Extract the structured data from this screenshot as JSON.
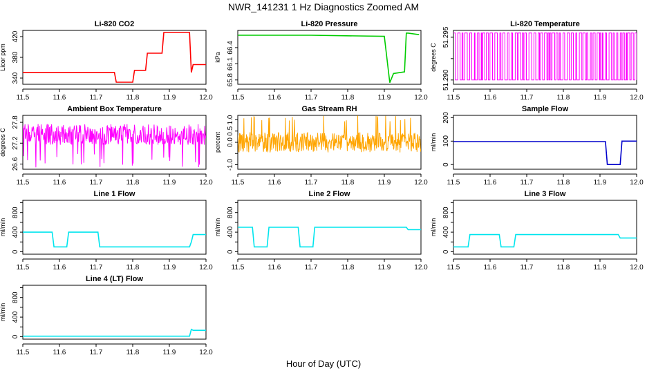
{
  "figure": {
    "title": "NWR_141231  1 Hz Diagnostics Zoomed AM",
    "xlabel": "Hour of Day (UTC)"
  },
  "chart_data": [
    {
      "type": "line",
      "title": "Li-820 CO2",
      "ylabel": "Licor ppm",
      "color": "#ff0000",
      "xlim": [
        11.5,
        12.0
      ],
      "ylim": [
        328,
        432
      ],
      "xticks": [
        "11.5",
        "11.6",
        "11.7",
        "11.8",
        "11.9",
        "12.0"
      ],
      "yticks": [
        340,
        380,
        420
      ],
      "x": [
        11.5,
        11.75,
        11.755,
        11.8,
        11.805,
        11.835,
        11.84,
        11.88,
        11.885,
        11.955,
        11.96,
        11.965,
        12.0
      ],
      "y": [
        351,
        351,
        332,
        332,
        355,
        355,
        388,
        388,
        428,
        428,
        351,
        366,
        366
      ]
    },
    {
      "type": "line",
      "title": "Li-820 Pressure",
      "ylabel": "kPa",
      "color": "#00cc00",
      "xlim": [
        11.5,
        12.0
      ],
      "ylim": [
        65.72,
        66.72
      ],
      "xticks": [
        "11.5",
        "11.6",
        "11.7",
        "11.8",
        "11.9",
        "12.0"
      ],
      "yticks": [
        65.8,
        66.1,
        66.4
      ],
      "ytick_labels": [
        "65.8",
        "66.1",
        "66.4"
      ],
      "x": [
        11.5,
        11.7,
        11.9,
        11.915,
        11.925,
        11.955,
        11.96,
        11.965,
        11.995
      ],
      "y": [
        66.63,
        66.63,
        66.61,
        65.75,
        65.92,
        65.95,
        66.67,
        66.67,
        66.64
      ]
    },
    {
      "type": "line",
      "title": "Li-820 Temperature",
      "ylabel": "degrees C",
      "color": "#ff00ff",
      "xlim": [
        11.5,
        12.0
      ],
      "ylim": [
        51.2895,
        51.2958
      ],
      "xticks": [
        "11.5",
        "11.6",
        "11.7",
        "11.8",
        "11.9",
        "12.0"
      ],
      "yticks": [
        51.29,
        51.2925,
        51.295
      ],
      "ytick_labels": [
        "51.290",
        "51.295"
      ],
      "values_note": "alternates between 51.2900 and 51.2955"
    },
    {
      "type": "line",
      "title": "Ambient Box Temperature",
      "ylabel": "degrees C",
      "color": "#ff00ff",
      "xlim": [
        11.5,
        12.0
      ],
      "ylim": [
        26.45,
        28.0
      ],
      "xticks": [
        "11.5",
        "11.6",
        "11.7",
        "11.8",
        "11.9",
        "12.0"
      ],
      "yticks": [
        26.6,
        27.2,
        27.8
      ],
      "ytick_labels": [
        "26.6",
        "27.2",
        "27.8"
      ],
      "noise": {
        "center": 27.45,
        "amp": 0.3,
        "spike_min": 26.5
      }
    },
    {
      "type": "line",
      "title": "Gas Stream RH",
      "ylabel": "percent",
      "color": "#ffa500",
      "xlim": [
        11.5,
        12.0
      ],
      "ylim": [
        -1.2,
        1.2
      ],
      "xticks": [
        "11.5",
        "11.6",
        "11.7",
        "11.8",
        "11.9",
        "12.0"
      ],
      "yticks": [
        -1.0,
        -0.5,
        0.0,
        0.5,
        1.0
      ],
      "ytick_labels": [
        "-1.0",
        "0.0",
        "0.5",
        "1.0"
      ],
      "noise": {
        "center": 0.0,
        "amp": 0.45,
        "spike_max": 1.2
      }
    },
    {
      "type": "line",
      "title": "Sample Flow",
      "ylabel": "ml/min",
      "color": "#0000cc",
      "xlim": [
        11.5,
        12.0
      ],
      "ylim": [
        -20,
        210
      ],
      "xticks": [
        "11.5",
        "11.6",
        "11.7",
        "11.8",
        "11.9",
        "12.0"
      ],
      "yticks": [
        0,
        100,
        200
      ],
      "x": [
        11.5,
        11.915,
        11.92,
        11.955,
        11.96,
        12.0
      ],
      "y": [
        98,
        98,
        0,
        0,
        100,
        100
      ]
    },
    {
      "type": "line",
      "title": "Line 1 Flow",
      "ylabel": "ml/min",
      "color": "#00e5ee",
      "xlim": [
        11.5,
        12.0
      ],
      "ylim": [
        -50,
        1050
      ],
      "xticks": [
        "11.5",
        "11.6",
        "11.7",
        "11.8",
        "11.9",
        "12.0"
      ],
      "yticks": [
        0,
        200,
        400,
        600,
        800,
        1000
      ],
      "ytick_labels": [
        "0",
        "400",
        "800"
      ],
      "x": [
        11.5,
        11.58,
        11.585,
        11.62,
        11.625,
        11.705,
        11.71,
        11.955,
        11.96,
        11.965,
        12.0
      ],
      "y": [
        400,
        400,
        100,
        100,
        400,
        400,
        100,
        100,
        200,
        350,
        350
      ]
    },
    {
      "type": "line",
      "title": "Line 2 Flow",
      "ylabel": "ml/min",
      "color": "#00e5ee",
      "xlim": [
        11.5,
        12.0
      ],
      "ylim": [
        -50,
        1050
      ],
      "xticks": [
        "11.5",
        "11.6",
        "11.7",
        "11.8",
        "11.9",
        "12.0"
      ],
      "yticks": [
        0,
        200,
        400,
        600,
        800,
        1000
      ],
      "ytick_labels": [
        "0",
        "400",
        "800"
      ],
      "x": [
        11.5,
        11.54,
        11.545,
        11.58,
        11.585,
        11.665,
        11.67,
        11.705,
        11.71,
        11.96,
        11.965,
        12.0
      ],
      "y": [
        500,
        500,
        100,
        100,
        500,
        500,
        100,
        100,
        500,
        500,
        450,
        450
      ]
    },
    {
      "type": "line",
      "title": "Line 3 Flow",
      "ylabel": "ml/min",
      "color": "#00e5ee",
      "xlim": [
        11.5,
        12.0
      ],
      "ylim": [
        -50,
        1050
      ],
      "xticks": [
        "11.5",
        "11.6",
        "11.7",
        "11.8",
        "11.9",
        "12.0"
      ],
      "yticks": [
        0,
        200,
        400,
        600,
        800,
        1000
      ],
      "ytick_labels": [
        "0",
        "400",
        "800"
      ],
      "x": [
        11.5,
        11.54,
        11.545,
        11.625,
        11.63,
        11.665,
        11.67,
        11.95,
        11.955,
        12.0
      ],
      "y": [
        100,
        100,
        350,
        350,
        100,
        100,
        350,
        350,
        280,
        280
      ]
    },
    {
      "type": "line",
      "title": "Line 4 (LT) Flow",
      "ylabel": "ml/min",
      "color": "#00e5ee",
      "xlim": [
        11.5,
        12.0
      ],
      "ylim": [
        -50,
        1050
      ],
      "xticks": [
        "11.5",
        "11.6",
        "11.7",
        "11.8",
        "11.9",
        "12.0"
      ],
      "yticks": [
        0,
        200,
        400,
        600,
        800,
        1000
      ],
      "ytick_labels": [
        "0",
        "400",
        "800"
      ],
      "x": [
        11.5,
        11.955,
        11.96,
        11.965,
        12.0
      ],
      "y": [
        10,
        10,
        150,
        130,
        130
      ]
    }
  ]
}
